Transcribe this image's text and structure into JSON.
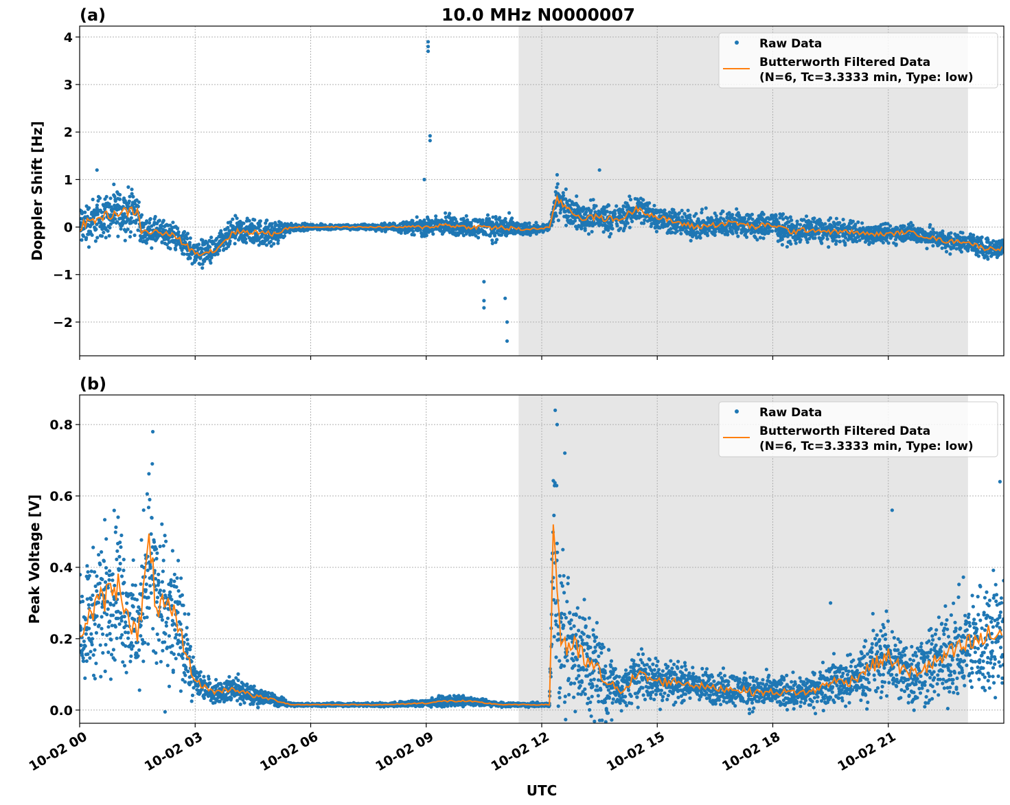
{
  "chart_data": {
    "type": "scatter",
    "title": "10.0 MHz N0000007",
    "xlabel": "UTC",
    "x_unit": "hours since 10-02 00:00",
    "xlim": [
      0,
      24
    ],
    "xticks": [
      0,
      3,
      6,
      9,
      12,
      15,
      18,
      21
    ],
    "xtick_labels": [
      "10-02 00",
      "10-02 03",
      "10-02 06",
      "10-02 09",
      "10-02 12",
      "10-02 15",
      "10-02 18",
      "10-02 21"
    ],
    "shaded_region": [
      11.4,
      23.07
    ],
    "grid": true,
    "colors": {
      "raw": "#1f77b4",
      "filtered": "#ff7f0e",
      "shade": "#e6e6e6"
    },
    "legend": {
      "placement": "top-right",
      "entries": [
        "Raw Data",
        "Butterworth Filtered Data",
        "(N=6, Tc=3.3333 min, Type: low)"
      ]
    },
    "panels": [
      {
        "label": "(a)",
        "ylabel": "Doppler Shift [Hz]",
        "ylim": [
          -2.71,
          4.23
        ],
        "yticks": [
          -2,
          -1,
          0,
          1,
          2,
          3,
          4
        ],
        "ytick_labels": [
          "−2",
          "−1",
          "0",
          "1",
          "2",
          "3",
          "4"
        ],
        "filtered_x": [
          0,
          0.5,
          1,
          1.5,
          1.6,
          2,
          2.5,
          3,
          3.5,
          4,
          4.5,
          5,
          5.5,
          6,
          7,
          8,
          9,
          9.5,
          10,
          10.5,
          11,
          11.5,
          12,
          12.2,
          12.4,
          12.5,
          13,
          13.5,
          14,
          14.5,
          15,
          15.5,
          16,
          16.5,
          17,
          17.5,
          18,
          18.5,
          19,
          19.5,
          20,
          20.5,
          21,
          21.5,
          22,
          22.5,
          23,
          23.5,
          24
        ],
        "filtered_y": [
          0.0,
          0.2,
          0.3,
          0.35,
          -0.1,
          -0.1,
          -0.2,
          -0.55,
          -0.5,
          -0.1,
          -0.1,
          -0.15,
          0.0,
          0.0,
          0.0,
          0.0,
          0.0,
          0.05,
          0.0,
          0.0,
          -0.02,
          -0.05,
          -0.03,
          0.0,
          0.6,
          0.5,
          0.2,
          0.2,
          0.15,
          0.4,
          0.2,
          0.1,
          0.0,
          0.05,
          0.1,
          0.0,
          0.05,
          -0.1,
          -0.05,
          -0.1,
          -0.1,
          -0.15,
          -0.15,
          -0.1,
          -0.2,
          -0.3,
          -0.3,
          -0.45,
          -0.45
        ],
        "raw_spread": [
          0.5,
          0.5,
          0.5,
          0.5,
          0.3,
          0.3,
          0.3,
          0.3,
          0.3,
          0.3,
          0.3,
          0.3,
          0.1,
          0.06,
          0.06,
          0.08,
          0.2,
          0.25,
          0.2,
          0.25,
          0.3,
          0.15,
          0.1,
          0.1,
          0.35,
          0.35,
          0.35,
          0.35,
          0.3,
          0.35,
          0.3,
          0.3,
          0.3,
          0.3,
          0.3,
          0.3,
          0.3,
          0.3,
          0.28,
          0.25,
          0.25,
          0.22,
          0.22,
          0.22,
          0.22,
          0.22,
          0.22,
          0.22,
          0.22
        ],
        "outliers": [
          [
            9.05,
            3.9
          ],
          [
            9.05,
            3.8
          ],
          [
            9.05,
            3.7
          ],
          [
            9.1,
            1.92
          ],
          [
            9.1,
            1.82
          ],
          [
            8.95,
            1.0
          ],
          [
            11.1,
            -2.4
          ],
          [
            11.1,
            -2.0
          ],
          [
            11.05,
            -1.5
          ],
          [
            10.5,
            -1.7
          ],
          [
            10.5,
            -1.55
          ],
          [
            10.5,
            -1.15
          ],
          [
            0.45,
            1.2
          ],
          [
            13.5,
            1.2
          ],
          [
            12.4,
            1.1
          ]
        ]
      },
      {
        "label": "(b)",
        "ylabel": "Peak Voltage [V]",
        "ylim": [
          -0.037,
          0.883
        ],
        "yticks": [
          0.0,
          0.2,
          0.4,
          0.6,
          0.8
        ],
        "ytick_labels": [
          "0.0",
          "0.2",
          "0.4",
          "0.6",
          "0.8"
        ],
        "filtered_x": [
          0,
          0.5,
          1,
          1.5,
          1.8,
          2,
          2.5,
          3,
          3.5,
          4,
          4.5,
          5,
          5.5,
          6,
          7,
          8,
          9,
          9.5,
          10,
          10.5,
          11,
          11.5,
          12,
          12.2,
          12.3,
          12.5,
          13,
          13.5,
          14,
          14.5,
          15,
          15.5,
          16,
          16.5,
          17,
          17.5,
          18,
          18.5,
          19,
          19.5,
          20,
          20.5,
          21,
          21.5,
          22,
          22.5,
          23,
          23.5,
          24
        ],
        "filtered_y": [
          0.22,
          0.3,
          0.35,
          0.2,
          0.45,
          0.3,
          0.25,
          0.08,
          0.05,
          0.06,
          0.04,
          0.03,
          0.015,
          0.015,
          0.015,
          0.015,
          0.02,
          0.025,
          0.025,
          0.02,
          0.015,
          0.015,
          0.015,
          0.015,
          0.5,
          0.2,
          0.15,
          0.1,
          0.05,
          0.1,
          0.08,
          0.08,
          0.07,
          0.06,
          0.06,
          0.05,
          0.05,
          0.05,
          0.05,
          0.08,
          0.08,
          0.12,
          0.15,
          0.1,
          0.12,
          0.15,
          0.18,
          0.2,
          0.22
        ],
        "raw_spread": [
          0.15,
          0.2,
          0.22,
          0.15,
          0.3,
          0.25,
          0.2,
          0.05,
          0.03,
          0.04,
          0.03,
          0.02,
          0.005,
          0.005,
          0.005,
          0.006,
          0.012,
          0.015,
          0.015,
          0.01,
          0.006,
          0.006,
          0.006,
          0.006,
          0.3,
          0.25,
          0.2,
          0.15,
          0.05,
          0.08,
          0.07,
          0.06,
          0.05,
          0.05,
          0.05,
          0.05,
          0.05,
          0.05,
          0.05,
          0.07,
          0.07,
          0.1,
          0.12,
          0.1,
          0.12,
          0.14,
          0.16,
          0.18,
          0.2
        ],
        "outliers": [
          [
            1.9,
            0.78
          ],
          [
            12.35,
            0.84
          ],
          [
            12.4,
            0.8
          ],
          [
            12.6,
            0.72
          ],
          [
            23.9,
            0.64
          ],
          [
            21.1,
            0.56
          ],
          [
            19.5,
            0.3
          ],
          [
            20.6,
            0.27
          ]
        ]
      }
    ]
  }
}
